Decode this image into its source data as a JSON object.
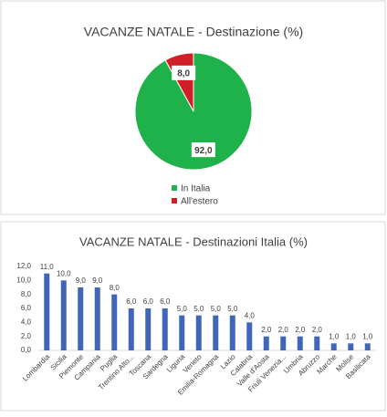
{
  "chart_data": [
    {
      "type": "pie",
      "title": "VACANZE NATALE - Destinazione  (%)",
      "categories": [
        "In Italia",
        "All'estero"
      ],
      "values": [
        92.0,
        8.0
      ],
      "value_labels": [
        "92,0",
        "8,0"
      ],
      "colors": [
        "#1fb14a",
        "#d01f26"
      ],
      "legend": "bottom"
    },
    {
      "type": "bar",
      "title": "VACANZE NATALE - Destinazioni Italia  (%)",
      "categories": [
        "Lombardia",
        "Sicilia",
        "Piemonte",
        "Campania",
        "Puglia",
        "Trentino Alto...",
        "Toscana",
        "Sardegna",
        "Liguria",
        "Veneto",
        "Emilia-Romagna",
        "Lazio",
        "Calabria",
        "Valle d'Aosta",
        "Friuli Venezia...",
        "Umbria",
        "Abruzzo",
        "Marche",
        "Molise",
        "Basilicata"
      ],
      "values": [
        11,
        10,
        9,
        9,
        8,
        6,
        6,
        6,
        5,
        5,
        5,
        5,
        4,
        2,
        2,
        2,
        2,
        1,
        1,
        1
      ],
      "value_labels": [
        "11,0",
        "10,0",
        "9,0",
        "9,0",
        "8,0",
        "6,0",
        "6,0",
        "6,0",
        "5,0",
        "5,0",
        "5,0",
        "5,0",
        "4,0",
        "2,0",
        "2,0",
        "2,0",
        "2,0",
        "1,0",
        "1,0",
        "1,0"
      ],
      "color": "#4166b8",
      "ylim": [
        0,
        12
      ],
      "yticks": [
        {
          "value": 0,
          "label": "0,0"
        },
        {
          "value": 2,
          "label": "2,0"
        },
        {
          "value": 4,
          "label": "4,0"
        },
        {
          "value": 6,
          "label": "6,0"
        },
        {
          "value": 8,
          "label": "8,0"
        },
        {
          "value": 10,
          "label": "10,0"
        },
        {
          "value": 12,
          "label": "12,0"
        }
      ],
      "grid": false
    }
  ]
}
